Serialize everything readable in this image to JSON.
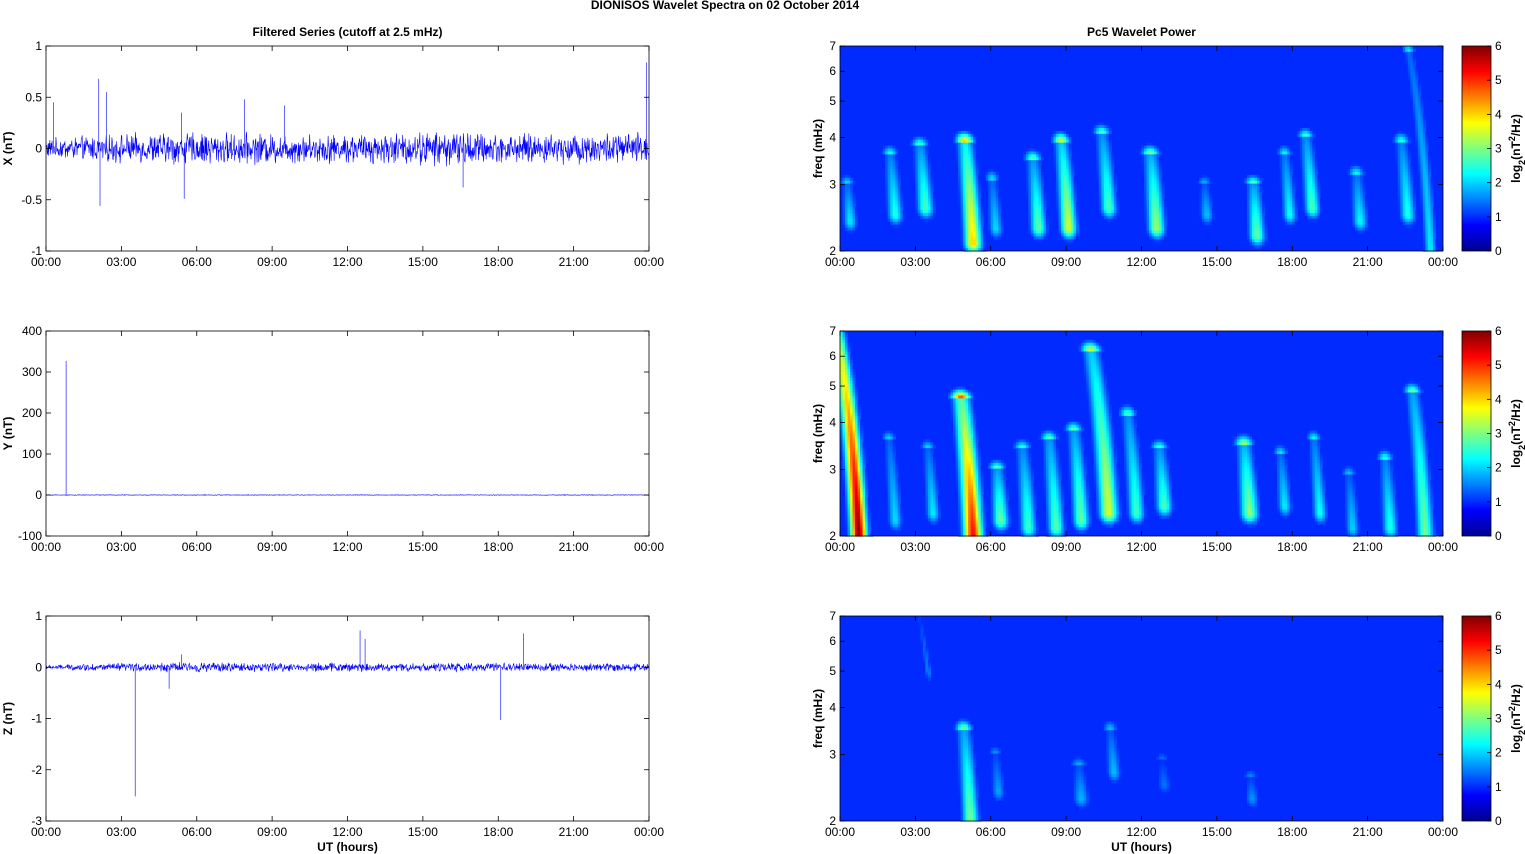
{
  "figure": {
    "suptitle": "DIONISOS Wavelet Spectra on 02 October   2014"
  },
  "chart_data": [
    {
      "type": "line",
      "panel": "filtered-x",
      "title": "Filtered Series (cutoff at 2.5 mHz)",
      "ylabel": "X (nT)",
      "xlabel": "",
      "xlim": [
        0,
        24
      ],
      "ylim": [
        -1,
        1
      ],
      "x_ticks": [
        "00:00",
        "03:00",
        "06:00",
        "09:00",
        "12:00",
        "15:00",
        "18:00",
        "21:00",
        "00:00"
      ],
      "y_ticks": [
        "-1",
        "-0.5",
        "0",
        "0.5",
        "1"
      ],
      "y_tick_values": [
        -1,
        -0.5,
        0,
        0.5,
        1
      ],
      "series": [
        {
          "color": "#0000ff",
          "noise_amplitude": 0.08,
          "activity": [
            [
              0,
              0.9
            ],
            [
              2,
              1.2
            ],
            [
              5.5,
              1.5
            ],
            [
              8,
              1.4
            ],
            [
              11,
              1.3
            ],
            [
              16.5,
              1.6
            ],
            [
              18,
              1.3
            ],
            [
              22,
              1.4
            ],
            [
              24,
              1.5
            ]
          ],
          "spikes": [
            [
              0.3,
              0.45
            ],
            [
              2.1,
              0.68
            ],
            [
              2.15,
              -0.56
            ],
            [
              2.4,
              0.55
            ],
            [
              5.4,
              0.35
            ],
            [
              5.5,
              -0.49
            ],
            [
              7.9,
              0.48
            ],
            [
              9.5,
              0.42
            ],
            [
              16.6,
              -0.38
            ],
            [
              23.9,
              0.84
            ]
          ]
        }
      ]
    },
    {
      "type": "line",
      "panel": "filtered-y",
      "title": "",
      "ylabel": "Y (nT)",
      "xlabel": "",
      "xlim": [
        0,
        24
      ],
      "ylim": [
        -100,
        400
      ],
      "x_ticks": [
        "00:00",
        "03:00",
        "06:00",
        "09:00",
        "12:00",
        "15:00",
        "18:00",
        "21:00",
        "00:00"
      ],
      "y_ticks": [
        "-100",
        "0",
        "100",
        "200",
        "300",
        "400"
      ],
      "y_tick_values": [
        -100,
        0,
        100,
        200,
        300,
        400
      ],
      "series": [
        {
          "color": "#0000ff",
          "noise_amplitude": 0.6,
          "activity": [
            [
              0,
              1
            ],
            [
              24,
              1
            ]
          ],
          "spikes": [
            [
              0.8,
              327
            ]
          ]
        }
      ]
    },
    {
      "type": "line",
      "panel": "filtered-z",
      "title": "",
      "ylabel": "Z (nT)",
      "xlabel": "UT (hours)",
      "xlim": [
        0,
        24
      ],
      "ylim": [
        -3,
        1
      ],
      "x_ticks": [
        "00:00",
        "03:00",
        "06:00",
        "09:00",
        "12:00",
        "15:00",
        "18:00",
        "21:00",
        "00:00"
      ],
      "y_ticks": [
        "-3",
        "-2",
        "-1",
        "0",
        "1"
      ],
      "y_tick_values": [
        -3,
        -2,
        -1,
        0,
        1
      ],
      "series": [
        {
          "color": "#0000ff",
          "noise_amplitude": 0.05,
          "activity": [
            [
              0,
              0.6
            ],
            [
              2,
              1.1
            ],
            [
              5,
              1.4
            ],
            [
              12,
              1.3
            ],
            [
              18,
              1.2
            ],
            [
              24,
              1.2
            ]
          ],
          "spikes": [
            [
              3.55,
              -2.52
            ],
            [
              4.9,
              -0.42
            ],
            [
              5.4,
              0.25
            ],
            [
              12.5,
              0.72
            ],
            [
              12.7,
              0.55
            ],
            [
              18.1,
              -1.03
            ],
            [
              19.0,
              0.66
            ]
          ]
        }
      ]
    },
    {
      "type": "heatmap",
      "panel": "wavelet-x",
      "title": "Pc5 Wavelet Power",
      "ylabel": "freq (mHz)",
      "xlabel": "",
      "xlim": [
        0,
        24
      ],
      "ylim": [
        2,
        7
      ],
      "y_scale": "log",
      "x_ticks": [
        "00:00",
        "03:00",
        "06:00",
        "09:00",
        "12:00",
        "15:00",
        "18:00",
        "21:00",
        "00:00"
      ],
      "y_ticks": [
        "2",
        "3",
        "4",
        "5",
        "6",
        "7"
      ],
      "y_tick_values": [
        2,
        3,
        4,
        5,
        6,
        7
      ],
      "colorbar": {
        "label_base": "log",
        "label_sub": "2",
        "label_mid": "(nT",
        "label_sup": "2",
        "label_end": "/Hz)",
        "ticks": [
          "0",
          "1",
          "2",
          "3",
          "4",
          "5",
          "6"
        ],
        "range": [
          0,
          6
        ]
      },
      "blobs": [
        {
          "t": 0.4,
          "f0": 2.4,
          "f1": 3.0,
          "power": 1.7,
          "width": 0.25
        },
        {
          "t": 2.2,
          "f0": 2.5,
          "f1": 3.6,
          "power": 2.0,
          "width": 0.28
        },
        {
          "t": 3.4,
          "f0": 2.6,
          "f1": 3.8,
          "power": 2.3,
          "width": 0.3
        },
        {
          "t": 5.3,
          "f0": 2.1,
          "f1": 3.9,
          "power": 3.8,
          "width": 0.32
        },
        {
          "t": 6.2,
          "f0": 2.3,
          "f1": 3.1,
          "power": 1.6,
          "width": 0.25
        },
        {
          "t": 7.9,
          "f0": 2.3,
          "f1": 3.5,
          "power": 2.4,
          "width": 0.3
        },
        {
          "t": 9.1,
          "f0": 2.3,
          "f1": 3.9,
          "power": 3.2,
          "width": 0.3
        },
        {
          "t": 10.7,
          "f0": 2.6,
          "f1": 4.1,
          "power": 2.3,
          "width": 0.3
        },
        {
          "t": 12.6,
          "f0": 2.3,
          "f1": 3.6,
          "power": 2.8,
          "width": 0.32
        },
        {
          "t": 14.6,
          "f0": 2.5,
          "f1": 3.0,
          "power": 1.4,
          "width": 0.25
        },
        {
          "t": 16.6,
          "f0": 2.2,
          "f1": 3.0,
          "power": 2.5,
          "width": 0.3
        },
        {
          "t": 17.9,
          "f0": 2.5,
          "f1": 3.6,
          "power": 1.9,
          "width": 0.25
        },
        {
          "t": 18.8,
          "f0": 2.6,
          "f1": 4.0,
          "power": 2.3,
          "width": 0.28
        },
        {
          "t": 20.7,
          "f0": 2.4,
          "f1": 3.2,
          "power": 1.8,
          "width": 0.28
        },
        {
          "t": 22.6,
          "f0": 2.5,
          "f1": 3.9,
          "power": 2.0,
          "width": 0.28
        },
        {
          "t": 23.5,
          "f0": 2.0,
          "f1": 6.8,
          "power": 1.7,
          "width": 0.22
        }
      ]
    },
    {
      "type": "heatmap",
      "panel": "wavelet-y",
      "title": "",
      "ylabel": "freq (mHz)",
      "xlabel": "",
      "xlim": [
        0,
        24
      ],
      "ylim": [
        2,
        7
      ],
      "y_scale": "log",
      "x_ticks": [
        "00:00",
        "03:00",
        "06:00",
        "09:00",
        "12:00",
        "15:00",
        "18:00",
        "21:00",
        "00:00"
      ],
      "y_ticks": [
        "2",
        "3",
        "4",
        "5",
        "6",
        "7"
      ],
      "y_tick_values": [
        2,
        3,
        4,
        5,
        6,
        7
      ],
      "colorbar": {
        "label_base": "log",
        "label_sub": "2",
        "label_mid": "(nT",
        "label_sup": "2",
        "label_end": "/Hz)",
        "ticks": [
          "0",
          "1",
          "2",
          "3",
          "4",
          "5",
          "6"
        ],
        "range": [
          0,
          6
        ]
      },
      "blobs": [
        {
          "t": 0.75,
          "f0": 2.0,
          "f1": 7.0,
          "power": 6.0,
          "width": 0.3
        },
        {
          "t": 2.2,
          "f0": 2.2,
          "f1": 3.6,
          "power": 1.6,
          "width": 0.25
        },
        {
          "t": 3.7,
          "f0": 2.3,
          "f1": 3.4,
          "power": 1.7,
          "width": 0.25
        },
        {
          "t": 5.3,
          "f0": 2.0,
          "f1": 4.6,
          "power": 5.2,
          "width": 0.35
        },
        {
          "t": 6.4,
          "f0": 2.2,
          "f1": 3.0,
          "power": 2.5,
          "width": 0.3
        },
        {
          "t": 7.5,
          "f0": 2.1,
          "f1": 3.4,
          "power": 2.2,
          "width": 0.3
        },
        {
          "t": 8.6,
          "f0": 2.1,
          "f1": 3.6,
          "power": 2.4,
          "width": 0.3
        },
        {
          "t": 9.6,
          "f0": 2.2,
          "f1": 3.8,
          "power": 2.5,
          "width": 0.3
        },
        {
          "t": 10.7,
          "f0": 2.3,
          "f1": 6.2,
          "power": 3.2,
          "width": 0.35
        },
        {
          "t": 11.8,
          "f0": 2.3,
          "f1": 4.2,
          "power": 2.2,
          "width": 0.3
        },
        {
          "t": 12.9,
          "f0": 2.4,
          "f1": 3.4,
          "power": 2.3,
          "width": 0.3
        },
        {
          "t": 16.3,
          "f0": 2.3,
          "f1": 3.5,
          "power": 2.8,
          "width": 0.33
        },
        {
          "t": 17.7,
          "f0": 2.4,
          "f1": 3.3,
          "power": 1.7,
          "width": 0.25
        },
        {
          "t": 19.1,
          "f0": 2.3,
          "f1": 3.6,
          "power": 1.9,
          "width": 0.25
        },
        {
          "t": 20.4,
          "f0": 2.1,
          "f1": 2.9,
          "power": 1.5,
          "width": 0.25
        },
        {
          "t": 21.9,
          "f0": 2.1,
          "f1": 3.2,
          "power": 2.0,
          "width": 0.28
        },
        {
          "t": 23.3,
          "f0": 2.0,
          "f1": 4.8,
          "power": 2.6,
          "width": 0.3
        }
      ]
    },
    {
      "type": "heatmap",
      "panel": "wavelet-z",
      "title": "",
      "ylabel": "freq (mHz)",
      "xlabel": "UT (hours)",
      "xlim": [
        0,
        24
      ],
      "ylim": [
        2,
        7
      ],
      "y_scale": "log",
      "x_ticks": [
        "00:00",
        "03:00",
        "06:00",
        "09:00",
        "12:00",
        "15:00",
        "18:00",
        "21:00",
        "00:00"
      ],
      "y_ticks": [
        "2",
        "3",
        "4",
        "5",
        "6",
        "7"
      ],
      "y_tick_values": [
        2,
        3,
        4,
        5,
        6,
        7
      ],
      "colorbar": {
        "label_base": "log",
        "label_sub": "2",
        "label_mid": "(nT",
        "label_sup": "2",
        "label_end": "/Hz)",
        "ticks": [
          "0",
          "1",
          "2",
          "3",
          "4",
          "5",
          "6"
        ],
        "range": [
          0,
          6
        ]
      },
      "blobs": [
        {
          "t": 3.5,
          "f0": 5.0,
          "f1": 7.0,
          "power": 1.0,
          "width": 0.12
        },
        {
          "t": 5.2,
          "f0": 2.0,
          "f1": 3.5,
          "power": 2.6,
          "width": 0.3
        },
        {
          "t": 6.3,
          "f0": 2.4,
          "f1": 3.0,
          "power": 1.2,
          "width": 0.25
        },
        {
          "t": 9.6,
          "f0": 2.3,
          "f1": 2.8,
          "power": 1.3,
          "width": 0.3
        },
        {
          "t": 10.9,
          "f0": 2.7,
          "f1": 3.5,
          "power": 1.4,
          "width": 0.25
        },
        {
          "t": 12.9,
          "f0": 2.5,
          "f1": 2.9,
          "power": 0.9,
          "width": 0.25
        },
        {
          "t": 16.4,
          "f0": 2.3,
          "f1": 2.6,
          "power": 1.1,
          "width": 0.25
        }
      ]
    }
  ]
}
